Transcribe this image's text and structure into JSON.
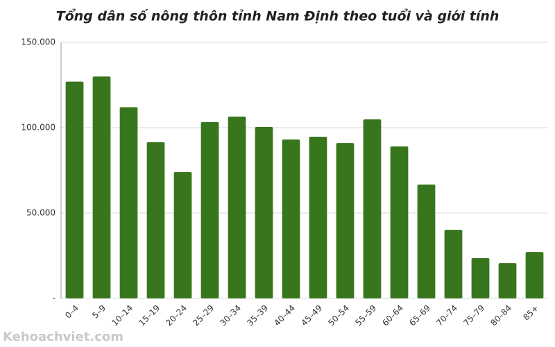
{
  "chart_data": {
    "type": "bar",
    "title": "Tổng dân số nông thôn tỉnh Nam Định theo tuổi và giới tính",
    "categories": [
      "0–4",
      "5–9",
      "10–14",
      "15–19",
      "20–24",
      "25–29",
      "30–34",
      "35–39",
      "40–44",
      "45–49",
      "50–54",
      "55–59",
      "60–64",
      "65–69",
      "70–74",
      "75–79",
      "80–84",
      "85+"
    ],
    "values": [
      127000,
      130000,
      112000,
      91500,
      74000,
      103300,
      106500,
      100400,
      93100,
      94700,
      91000,
      104900,
      89000,
      66700,
      40200,
      23600,
      20700,
      27200
    ],
    "color": "#38761d",
    "ylim": [
      0,
      150000
    ],
    "yticks": [
      {
        "value": 0,
        "label": "-"
      },
      {
        "value": 50000,
        "label": "50.000"
      },
      {
        "value": 100000,
        "label": "100.000"
      },
      {
        "value": 150000,
        "label": "150.000"
      }
    ],
    "grid": true,
    "watermark": "Kehoachviet.com"
  }
}
